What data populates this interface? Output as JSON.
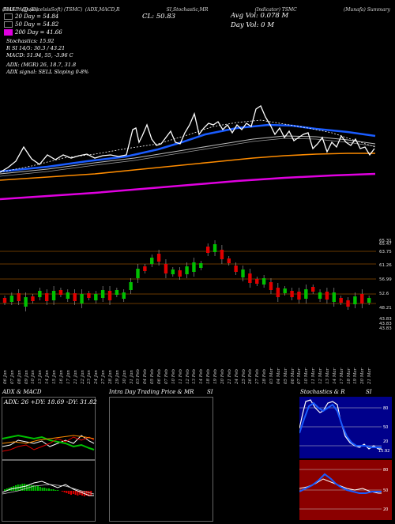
{
  "header": {
    "symbol": "(NASDAQ) (ExcelsisSoft) (TSMC)",
    "items": [
      "EMA ^ (Quad)",
      "(ADX,MACD,R",
      "SI,Stochastic,MR",
      "(Indicator) TSMC",
      "(Munafa) Summary"
    ]
  },
  "close_label": "CL: 50.83",
  "avg_vol": "Avg Vol: 0.078  M",
  "day_vol": "Day Vol: 0  M",
  "ema_legend": [
    {
      "label": "20  Day = 54.84",
      "color": "#000000"
    },
    {
      "label": "50  Day = 54.82",
      "color": "#000000"
    },
    {
      "label": "200  Day = 41.66",
      "color": "#e000e0"
    }
  ],
  "indicators": [
    "Stochastics: 15.92",
    "R        SI 14/5: 30.3 / 43.21",
    "MACD: 51.94,  55,  -3.96  C"
  ],
  "adx_line": "ADX:                                         (MGR) 26, 18.7, 31.8",
  "adx_signal": "ADX  signal: SELL  Sloping 0-8%",
  "price_labels": [
    "65.31",
    "65.47",
    "63.75",
    "61.26",
    "56.99",
    "52.6",
    "48.21",
    "43.83",
    "43.83",
    "43.83"
  ],
  "date_labels": [
    "06 Jan",
    "07 Jan",
    "08 Jan",
    "09 Jan",
    "10 Jan",
    "13 Jan",
    "14 Jan",
    "15 Jan",
    "16 Jan",
    "17 Jan",
    "21 Jan",
    "22 Jan",
    "23 Jan",
    "24 Jan",
    "27 Jan",
    "28 Jan",
    "29 Jan",
    "30 Jan",
    "31 Jan",
    "03 Feb",
    "04 Feb",
    "05 Feb",
    "06 Feb",
    "07 Feb",
    "10 Feb",
    "11 Feb",
    "12 Feb",
    "13 Feb",
    "14 Feb",
    "18 Feb",
    "19 Feb",
    "20 Feb",
    "21 Feb",
    "24 Feb",
    "25 Feb",
    "26 Feb",
    "27 Feb",
    "28 Feb",
    "03 Mar",
    "04 Mar",
    "05 Mar",
    "06 Mar",
    "07 Mar",
    "10 Mar",
    "11 Mar",
    "12 Mar",
    "13 Mar",
    "14 Mar",
    "17 Mar",
    "18 Mar",
    "19 Mar",
    "20 Mar",
    "21 Mar"
  ],
  "panels": {
    "adx_title": "ADX  & MACD",
    "adx_values": "ADX: 26  +DY: 18.69  -DY: 31.82",
    "intraday_title": "Intra  Day Trading Price  & MR",
    "intraday_si": "SI",
    "stoch_title": "Stochastics & R",
    "stoch_si": "SI",
    "stoch_ticks": [
      "80",
      "50",
      "20",
      "15.92"
    ],
    "rsi_ticks": [
      "80",
      "50",
      "20"
    ]
  },
  "colors": {
    "ema20": "#ffffff",
    "ema50": "#1a5cff",
    "ema200": "#e000e0",
    "ema100": "#ff8c00",
    "up": "#00c000",
    "down": "#e00000",
    "stoch_bg": "#00008b",
    "rsi_bg": "#8b0000"
  }
}
